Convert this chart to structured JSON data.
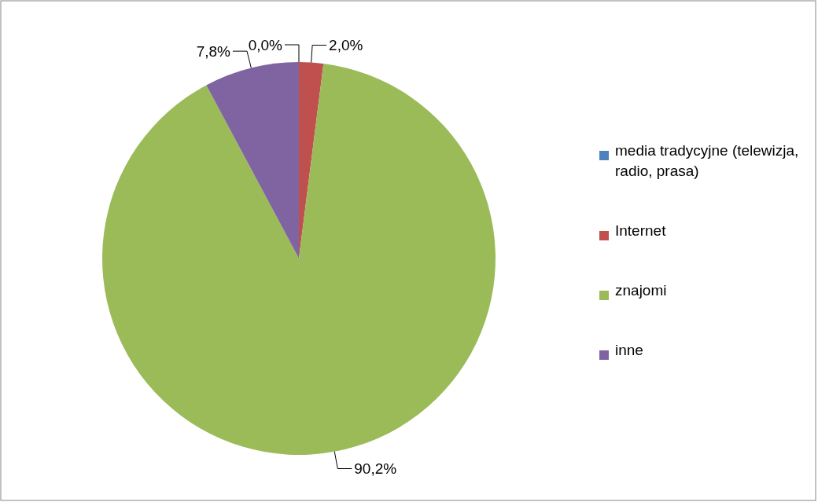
{
  "chart_data": {
    "type": "pie",
    "categories": [
      "media tradycyjne (telewizja, radio, prasa)",
      "Internet",
      "znajomi",
      "inne"
    ],
    "values": [
      0.0,
      2.0,
      90.2,
      7.8
    ],
    "colors": [
      "#4f81bd",
      "#c0504d",
      "#9bbb59",
      "#8064a2"
    ],
    "value_labels": [
      "0,0%",
      "2,0%",
      "90,2%",
      "7,8%"
    ],
    "legend": "right"
  }
}
